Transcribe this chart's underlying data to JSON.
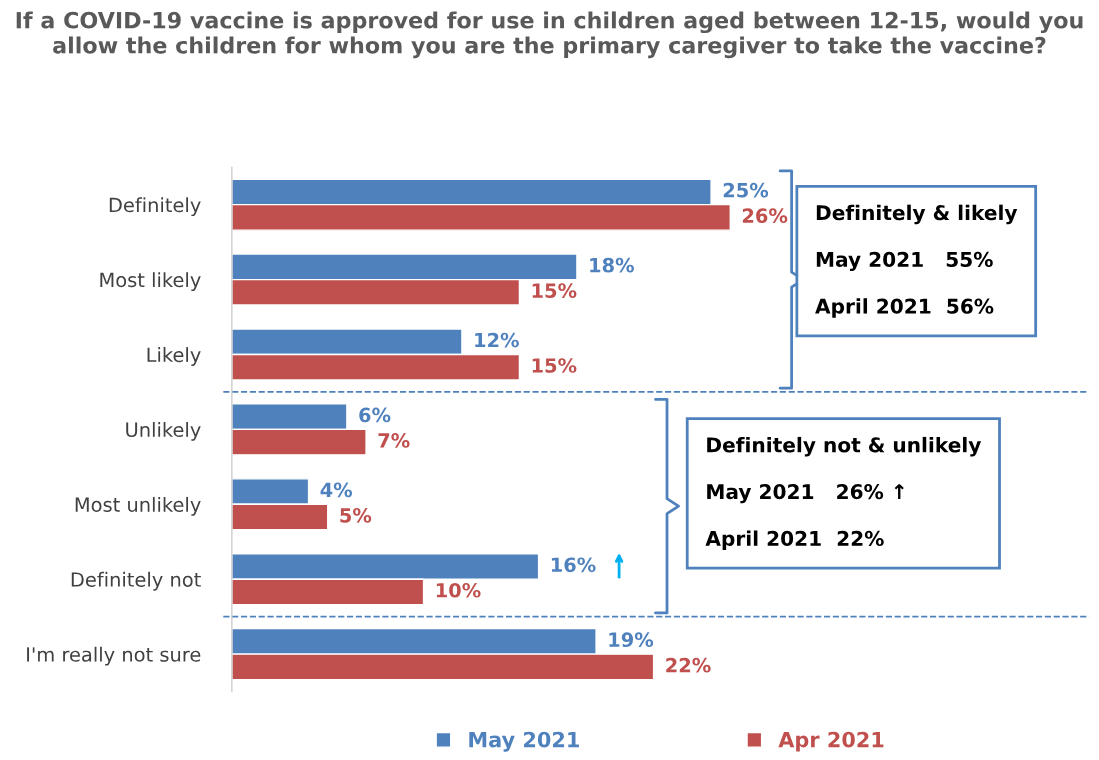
{
  "chart_data": {
    "type": "bar",
    "orientation": "horizontal",
    "title": "If a COVID-19 vaccine is approved for use in children aged between 12-15, would you allow the children for whom you are the primary caregiver to take the vaccine?",
    "categories": [
      "Definitely",
      "Most likely",
      "Likely",
      "Unlikely",
      "Most unlikely",
      "Definitely not",
      "I'm really not sure"
    ],
    "series": [
      {
        "name": "May 2021",
        "color": "#4f81bd",
        "values": [
          25,
          18,
          12,
          6,
          4,
          16,
          19
        ],
        "value_labels": [
          "25%",
          "18%",
          "12%",
          "6%",
          "4%",
          "16%",
          "19%"
        ]
      },
      {
        "name": "Apr 2021",
        "color": "#c0504d",
        "values": [
          26,
          15,
          15,
          7,
          5,
          10,
          22
        ],
        "value_labels": [
          "26%",
          "15%",
          "15%",
          "7%",
          "5%",
          "10%",
          "22%"
        ]
      }
    ],
    "annotations": [
      "Definitely & likely\n\nMay 2021   55%\n\nApril 2021  56%",
      "Definitely not & unlikely\n\nMay 2021   26% ↑\n\nApril 2021  22%"
    ],
    "legend": "bottom",
    "grid": false
  }
}
